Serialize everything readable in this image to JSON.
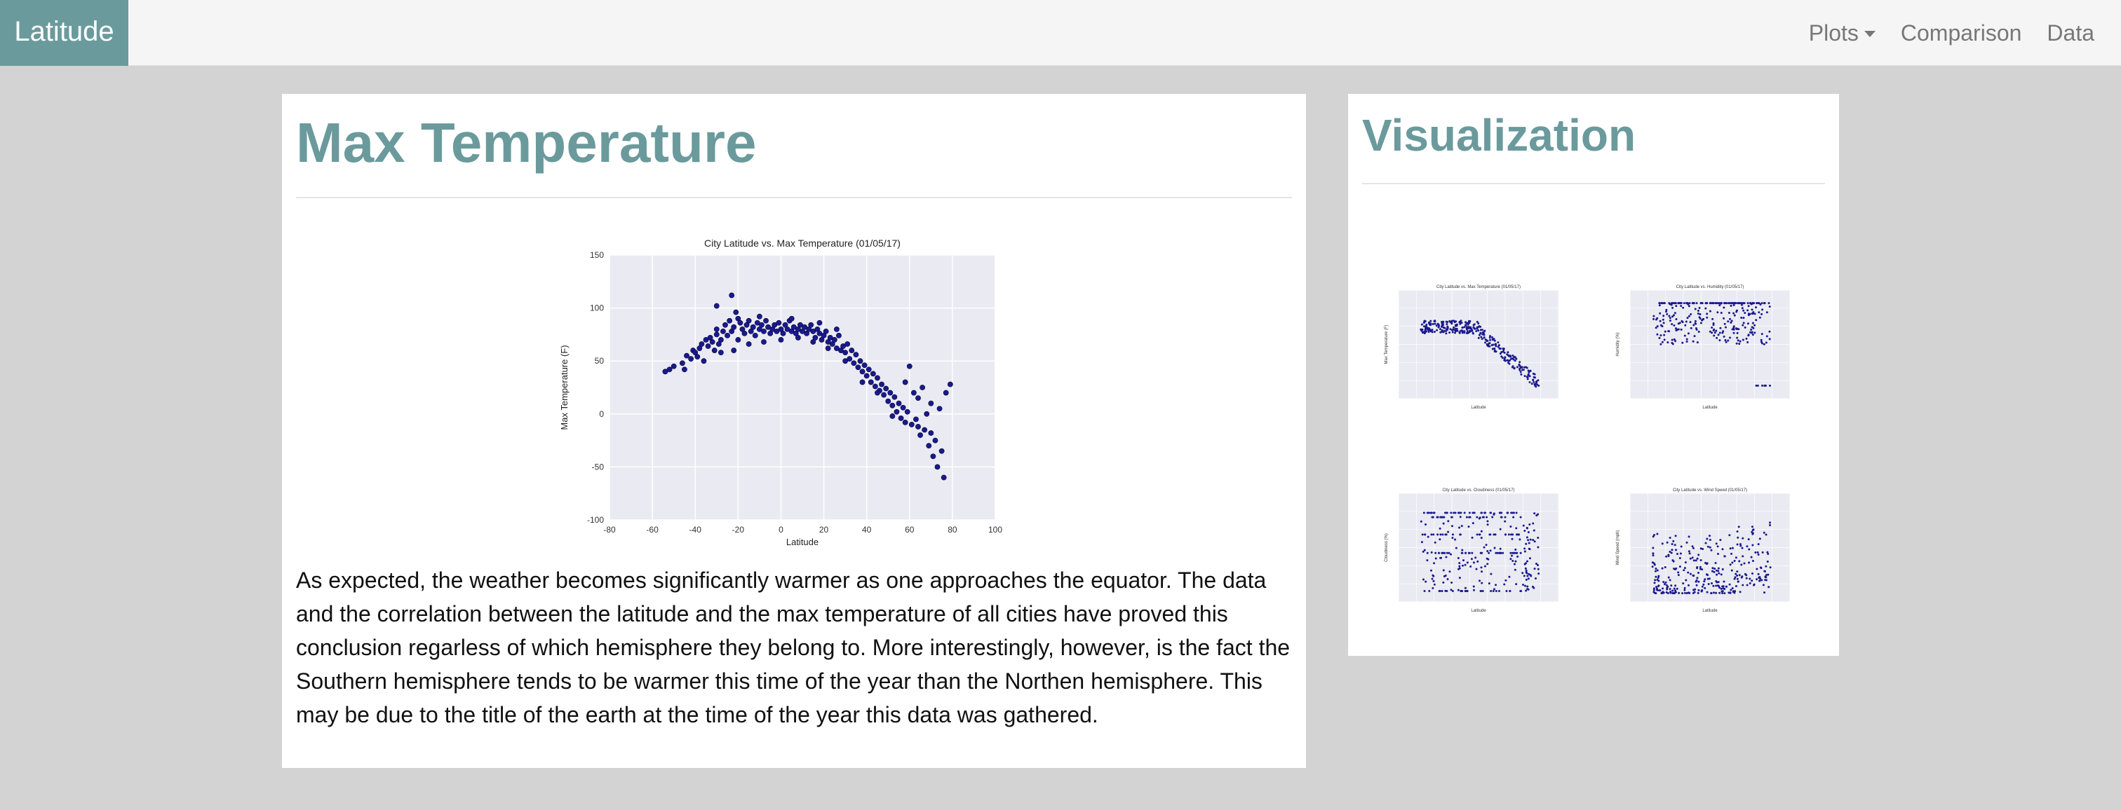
{
  "navbar": {
    "brand": "Latitude",
    "links": [
      {
        "label": "Plots",
        "has_caret": true
      },
      {
        "label": "Comparison",
        "has_caret": false
      },
      {
        "label": "Data",
        "has_caret": false
      }
    ]
  },
  "main": {
    "title": "Max Temperature",
    "description": "As expected, the weather becomes significantly warmer as one approaches the equator. The data and the correlation between the latitude and the max temperature of all cities have proved this conclusion regarless of which hemisphere they belong to. More interestingly, however, is the fact the Southern hemisphere tends to be warmer this time of the year than the Northen hemisphere. This may be due to the title of the earth at the time of the year this data was gathered."
  },
  "sidebar": {
    "title": "Visualization",
    "thumbnails": [
      {
        "title": "City Latitude vs. Max Temperature (01/05/17)",
        "ylabel": "Max Temperature (F)",
        "xlabel": "Latitude",
        "kind": "temp"
      },
      {
        "title": "City Latitude vs. Humidity (01/05/17)",
        "ylabel": "Humidity (%)",
        "xlabel": "Latitude",
        "kind": "humidity"
      },
      {
        "title": "City Latitude vs. Cloudiness (01/05/17)",
        "ylabel": "Cloudiness (%)",
        "xlabel": "Latitude",
        "kind": "cloud"
      },
      {
        "title": "City Latitude vs. Wind Speed (01/05/17)",
        "ylabel": "Wind Speed (mph)",
        "xlabel": "Latitude",
        "kind": "wind"
      }
    ]
  },
  "colors": {
    "accent": "#6b9a9c",
    "marker": "#1a1a8c",
    "plot_bg": "#eaeaf2"
  },
  "chart_data": {
    "type": "scatter",
    "title": "City Latitude vs. Max Temperature (01/05/17)",
    "xlabel": "Latitude",
    "ylabel": "Max Temperature (F)",
    "xlim": [
      -80,
      100
    ],
    "ylim": [
      -100,
      150
    ],
    "xticks": [
      -80,
      -60,
      -40,
      -20,
      0,
      20,
      40,
      60,
      80,
      100
    ],
    "yticks": [
      -100,
      -50,
      0,
      50,
      100,
      150
    ],
    "grid": true,
    "points": [
      [
        -54,
        40
      ],
      [
        -52,
        42
      ],
      [
        -50,
        45
      ],
      [
        -46,
        48
      ],
      [
        -44,
        55
      ],
      [
        -42,
        52
      ],
      [
        -41,
        60
      ],
      [
        -40,
        58
      ],
      [
        -38,
        62
      ],
      [
        -37,
        66
      ],
      [
        -36,
        50
      ],
      [
        -35,
        70
      ],
      [
        -34,
        64
      ],
      [
        -33,
        72
      ],
      [
        -32,
        68
      ],
      [
        -31,
        60
      ],
      [
        -30,
        75
      ],
      [
        -30,
        80
      ],
      [
        -29,
        66
      ],
      [
        -28,
        70
      ],
      [
        -27,
        78
      ],
      [
        -26,
        84
      ],
      [
        -25,
        74
      ],
      [
        -24,
        88
      ],
      [
        -23,
        78
      ],
      [
        -22,
        82
      ],
      [
        -21,
        96
      ],
      [
        -20,
        90
      ],
      [
        -20,
        70
      ],
      [
        -19,
        86
      ],
      [
        -18,
        80
      ],
      [
        -17,
        76
      ],
      [
        -16,
        84
      ],
      [
        -15,
        88
      ],
      [
        -14,
        78
      ],
      [
        -13,
        82
      ],
      [
        -12,
        74
      ],
      [
        -11,
        86
      ],
      [
        -10,
        80
      ],
      [
        -9,
        84
      ],
      [
        -8,
        78
      ],
      [
        -7,
        88
      ],
      [
        -6,
        82
      ],
      [
        -5,
        76
      ],
      [
        -4,
        80
      ],
      [
        -3,
        84
      ],
      [
        -2,
        78
      ],
      [
        -1,
        86
      ],
      [
        0,
        80
      ],
      [
        1,
        76
      ],
      [
        2,
        84
      ],
      [
        3,
        80
      ],
      [
        4,
        88
      ],
      [
        5,
        78
      ],
      [
        6,
        82
      ],
      [
        7,
        76
      ],
      [
        8,
        80
      ],
      [
        9,
        84
      ],
      [
        10,
        78
      ],
      [
        11,
        82
      ],
      [
        12,
        76
      ],
      [
        13,
        80
      ],
      [
        14,
        84
      ],
      [
        15,
        78
      ],
      [
        16,
        72
      ],
      [
        17,
        80
      ],
      [
        18,
        76
      ],
      [
        19,
        70
      ],
      [
        20,
        74
      ],
      [
        21,
        78
      ],
      [
        22,
        68
      ],
      [
        23,
        72
      ],
      [
        24,
        66
      ],
      [
        25,
        70
      ],
      [
        26,
        62
      ],
      [
        27,
        74
      ],
      [
        28,
        60
      ],
      [
        29,
        64
      ],
      [
        30,
        58
      ],
      [
        31,
        66
      ],
      [
        32,
        52
      ],
      [
        33,
        60
      ],
      [
        34,
        48
      ],
      [
        35,
        56
      ],
      [
        36,
        44
      ],
      [
        37,
        50
      ],
      [
        38,
        40
      ],
      [
        39,
        46
      ],
      [
        40,
        36
      ],
      [
        41,
        42
      ],
      [
        42,
        30
      ],
      [
        43,
        38
      ],
      [
        44,
        26
      ],
      [
        45,
        34
      ],
      [
        46,
        22
      ],
      [
        47,
        28
      ],
      [
        48,
        18
      ],
      [
        49,
        24
      ],
      [
        50,
        12
      ],
      [
        51,
        20
      ],
      [
        52,
        8
      ],
      [
        53,
        16
      ],
      [
        54,
        2
      ],
      [
        55,
        10
      ],
      [
        56,
        -4
      ],
      [
        57,
        6
      ],
      [
        58,
        30
      ],
      [
        59,
        2
      ],
      [
        60,
        45
      ],
      [
        61,
        -10
      ],
      [
        62,
        20
      ],
      [
        63,
        -5
      ],
      [
        64,
        15
      ],
      [
        65,
        -20
      ],
      [
        66,
        25
      ],
      [
        67,
        -15
      ],
      [
        68,
        0
      ],
      [
        69,
        -30
      ],
      [
        70,
        10
      ],
      [
        71,
        -40
      ],
      [
        72,
        -25
      ],
      [
        73,
        -50
      ],
      [
        74,
        5
      ],
      [
        75,
        -35
      ],
      [
        76,
        -60
      ],
      [
        -45,
        42
      ],
      [
        -39,
        54
      ],
      [
        -28,
        58
      ],
      [
        -22,
        60
      ],
      [
        -15,
        66
      ],
      [
        -8,
        68
      ],
      [
        0,
        70
      ],
      [
        8,
        72
      ],
      [
        15,
        68
      ],
      [
        22,
        62
      ],
      [
        30,
        50
      ],
      [
        38,
        30
      ],
      [
        45,
        20
      ],
      [
        52,
        -2
      ],
      [
        58,
        -8
      ],
      [
        64,
        -12
      ],
      [
        70,
        -18
      ],
      [
        77,
        20
      ],
      [
        79,
        28
      ],
      [
        -23,
        112
      ],
      [
        -30,
        102
      ],
      [
        -10,
        92
      ],
      [
        5,
        90
      ],
      [
        18,
        86
      ],
      [
        26,
        80
      ]
    ]
  }
}
